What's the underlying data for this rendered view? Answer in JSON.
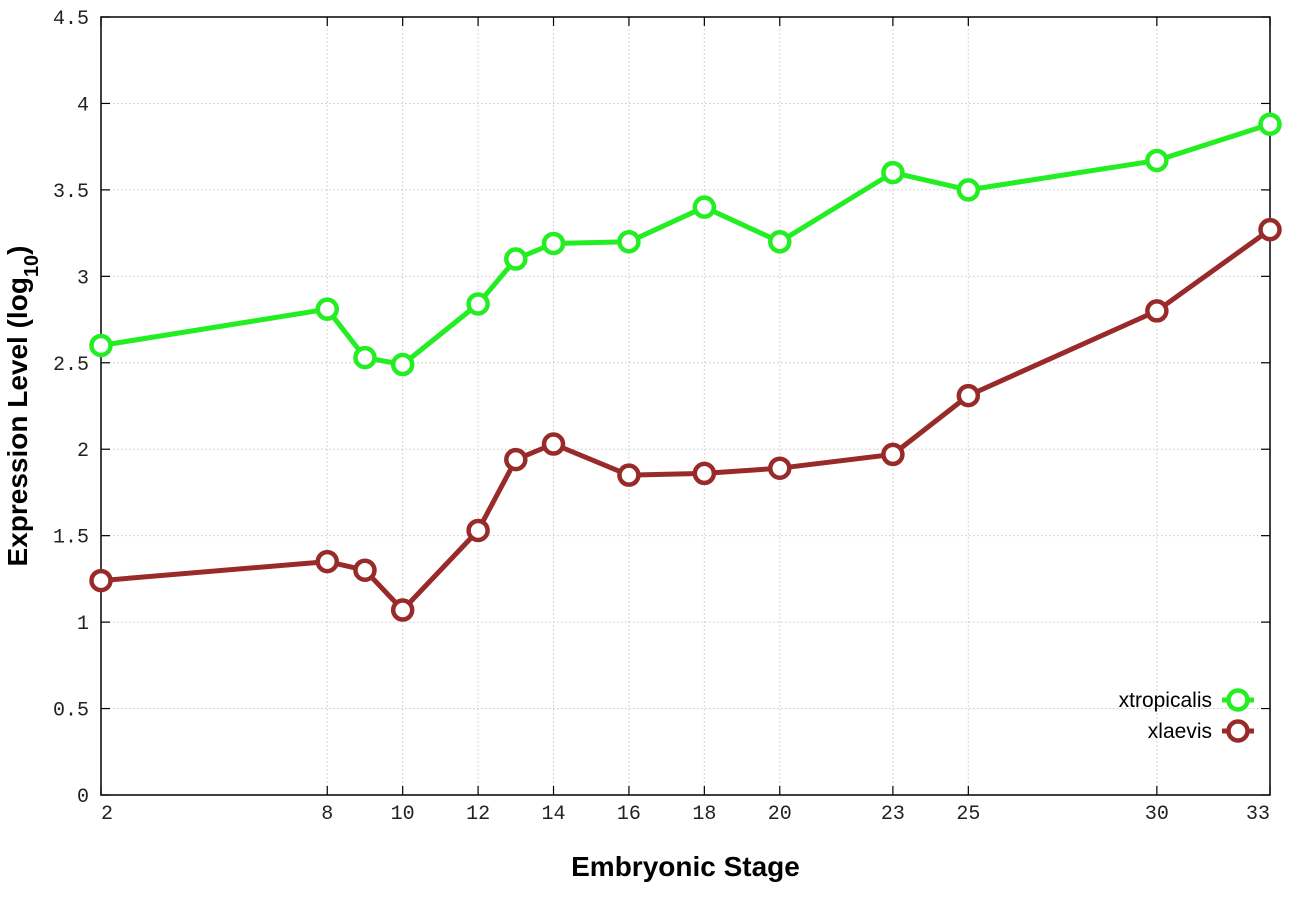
{
  "chart_data": {
    "type": "line",
    "xlabel": "Embryonic Stage",
    "ylabel_main": "Expression Level (log",
    "ylabel_sub": "10",
    "ylabel_close": ")",
    "x": [
      2,
      8,
      9,
      10,
      12,
      13,
      14,
      16,
      18,
      20,
      23,
      25,
      30,
      33
    ],
    "x_ticks": [
      2,
      8,
      10,
      12,
      14,
      16,
      18,
      20,
      23,
      25,
      30,
      33
    ],
    "y_ticks": [
      "0",
      "0.5",
      "1",
      "1.5",
      "2",
      "2.5",
      "3",
      "3.5",
      "4",
      "4.5"
    ],
    "xlim": [
      2,
      33
    ],
    "ylim": [
      0,
      4.5
    ],
    "grid": true,
    "legend_position": "bottom-right",
    "series": [
      {
        "name": "xtropicalis",
        "color": "#22ee22",
        "values": [
          2.6,
          2.81,
          2.53,
          2.49,
          2.84,
          3.1,
          3.19,
          3.2,
          3.4,
          3.2,
          3.6,
          3.5,
          3.67,
          3.88
        ]
      },
      {
        "name": "xlaevis",
        "color": "#992a2a",
        "values": [
          1.24,
          1.35,
          1.3,
          1.07,
          1.53,
          1.94,
          2.03,
          1.85,
          1.86,
          1.89,
          1.97,
          2.31,
          2.8,
          3.27
        ]
      }
    ]
  }
}
